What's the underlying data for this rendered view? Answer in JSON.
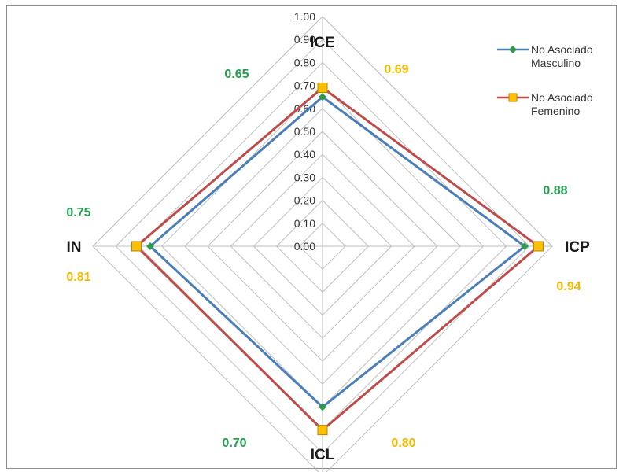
{
  "chart_data": {
    "type": "radar",
    "axes": [
      "ICE",
      "ICP",
      "ICL",
      "IN"
    ],
    "rlim": [
      0,
      1
    ],
    "ticks": [
      "0.00",
      "0.10",
      "0.20",
      "0.30",
      "0.40",
      "0.50",
      "0.60",
      "0.70",
      "0.80",
      "0.90",
      "1.00"
    ],
    "grid": true,
    "legend_position": "top-right",
    "series": [
      {
        "name_line1": "No Asociado",
        "name_line2": "Masculino",
        "values": [
          0.65,
          0.88,
          0.7,
          0.75
        ],
        "line_color": "#4a7ebb",
        "marker": "diamond",
        "marker_color": "#2e9a4b",
        "label_color": "#22a04b"
      },
      {
        "name_line1": "No Asociado",
        "name_line2": "Femenino",
        "values": [
          0.69,
          0.94,
          0.8,
          0.81
        ],
        "line_color": "#be4b48",
        "marker": "square",
        "marker_color": "#ffc000",
        "label_color": "#f5b800"
      }
    ],
    "annotations": {
      "ice_m": "0.65",
      "ice_f": "0.69",
      "icp_m": "0.88",
      "icp_f": "0.94",
      "icl_m": "0.70",
      "icl_f": "0.80",
      "in_m": "0.75",
      "in_f": "0.81"
    }
  }
}
